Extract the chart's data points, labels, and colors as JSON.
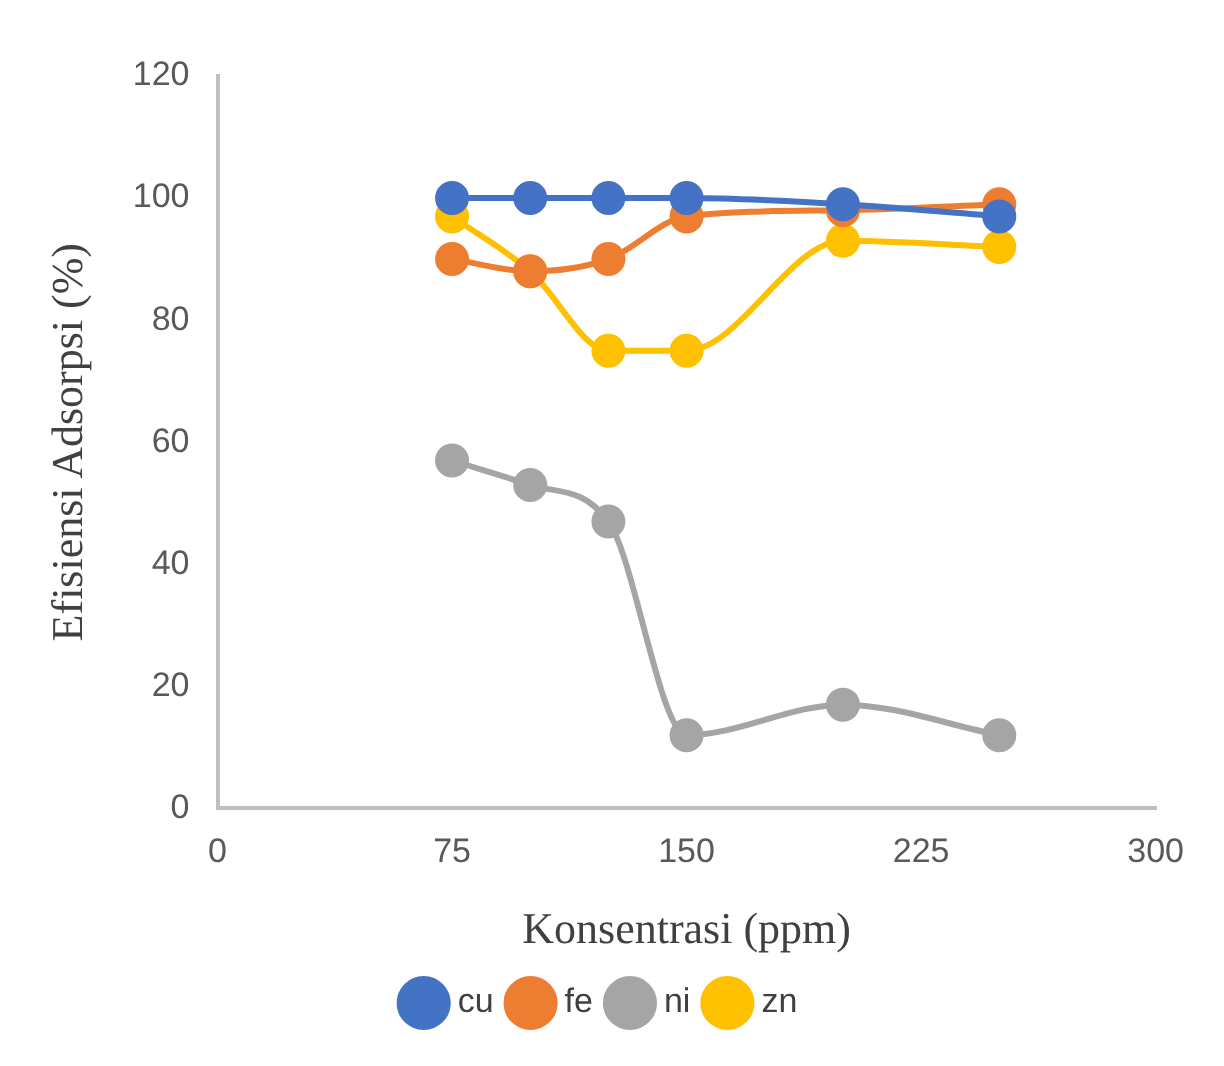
{
  "chart_data": {
    "type": "line",
    "xlabel": "Konsentrasi (ppm)",
    "ylabel": "Efisiensi Adsorpsi (%)",
    "x": [
      75,
      100,
      125,
      150,
      200,
      250
    ],
    "series": [
      {
        "name": "cu",
        "color": "#4472c4",
        "values": [
          100,
          100,
          100,
          100,
          99,
          97
        ]
      },
      {
        "name": "fe",
        "color": "#ed7d31",
        "values": [
          90,
          88,
          90,
          97,
          98,
          99
        ]
      },
      {
        "name": "ni",
        "color": "#a5a5a5",
        "values": [
          57,
          53,
          47,
          12,
          17,
          12
        ]
      },
      {
        "name": "zn",
        "color": "#ffc000",
        "values": [
          97,
          88,
          75,
          75,
          93,
          92
        ]
      }
    ],
    "xlim": [
      0,
      300
    ],
    "xticks": [
      0,
      75,
      150,
      225,
      300
    ],
    "ylim": [
      0,
      120
    ],
    "yticks": [
      0,
      20,
      40,
      60,
      80,
      100,
      120
    ],
    "grid": false,
    "legend": "bottom",
    "marker": "circle",
    "line_style": "solid"
  }
}
